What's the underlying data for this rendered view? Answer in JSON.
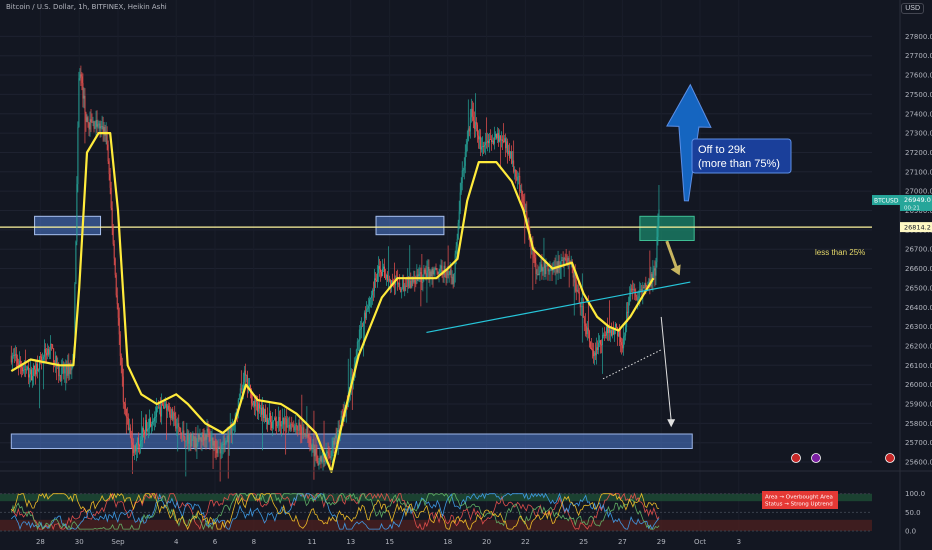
{
  "header": {
    "symbol_line": "Bitcoin / U.S. Dollar, 1h, BITFINEX, Heikin Ashi",
    "currency_button": "USD"
  },
  "colors": {
    "background": "#131722",
    "bull_candle": "#26a69a",
    "bear_candle": "#ef5350",
    "ma_line": "#ffeb3b",
    "resistance_line": "#fff59d",
    "zone_fill": "#4f7bd1",
    "green_zone": "#1b8f6f",
    "blue_arrow": "#1565c0",
    "trendline": "#26c6da",
    "osc_overbought": "#1e4d36",
    "osc_oversold": "#4a1f1f"
  },
  "chart_data": {
    "type": "candlestick",
    "ylim": [
      25550,
      27950
    ],
    "y_ticks": [
      "27800.0",
      "27700.0",
      "27600.0",
      "27500.0",
      "27400.0",
      "27300.0",
      "27200.0",
      "27100.0",
      "27000.0",
      "26900.0",
      "26800.0",
      "26700.0",
      "26600.0",
      "26500.0",
      "26400.0",
      "26300.0",
      "26200.0",
      "26100.0",
      "26000.0",
      "25900.0",
      "25800.0",
      "25700.0",
      "25600.0"
    ],
    "x_ticks": [
      "28",
      "30",
      "Sep",
      "4",
      "6",
      "8",
      "11",
      "13",
      "15",
      "18",
      "20",
      "22",
      "25",
      "27",
      "29",
      "Oct",
      "3"
    ],
    "x_tick_days": [
      -4,
      -2,
      0,
      3,
      5,
      7,
      10,
      12,
      14,
      17,
      19,
      21,
      24,
      26,
      28,
      30,
      32
    ],
    "price_path": [
      [
        -5.5,
        26150
      ],
      [
        -4.5,
        26050
      ],
      [
        -3.5,
        26200
      ],
      [
        -3.0,
        26050
      ],
      [
        -2.3,
        26100
      ],
      [
        -2.0,
        27650
      ],
      [
        -1.6,
        27350
      ],
      [
        -1.2,
        27350
      ],
      [
        -0.6,
        27300
      ],
      [
        -0.1,
        26500
      ],
      [
        0.3,
        25900
      ],
      [
        0.8,
        25650
      ],
      [
        1.5,
        25800
      ],
      [
        2.5,
        25900
      ],
      [
        3.2,
        25750
      ],
      [
        4.0,
        25700
      ],
      [
        4.6,
        25750
      ],
      [
        5.3,
        25650
      ],
      [
        6.0,
        25800
      ],
      [
        6.5,
        26050
      ],
      [
        7.0,
        25900
      ],
      [
        8.0,
        25800
      ],
      [
        9.0,
        25800
      ],
      [
        9.8,
        25750
      ],
      [
        10.3,
        25600
      ],
      [
        11.0,
        25650
      ],
      [
        11.8,
        25900
      ],
      [
        12.5,
        26300
      ],
      [
        13.5,
        26600
      ],
      [
        14.5,
        26500
      ],
      [
        15.5,
        26550
      ],
      [
        16.5,
        26600
      ],
      [
        17.3,
        26550
      ],
      [
        17.7,
        27050
      ],
      [
        18.2,
        27400
      ],
      [
        18.8,
        27200
      ],
      [
        19.5,
        27300
      ],
      [
        20.2,
        27200
      ],
      [
        20.8,
        27000
      ],
      [
        21.5,
        26600
      ],
      [
        22.5,
        26600
      ],
      [
        23.3,
        26650
      ],
      [
        24.0,
        26350
      ],
      [
        24.5,
        26150
      ],
      [
        25.0,
        26250
      ],
      [
        25.6,
        26300
      ],
      [
        26.0,
        26200
      ],
      [
        26.4,
        26500
      ],
      [
        26.8,
        26450
      ],
      [
        27.2,
        26500
      ],
      [
        27.5,
        26550
      ],
      [
        27.7,
        26600
      ],
      [
        27.9,
        26950
      ]
    ],
    "ma_path": [
      [
        -5.5,
        26070
      ],
      [
        -4.5,
        26130
      ],
      [
        -3.0,
        26100
      ],
      [
        -2.3,
        26100
      ],
      [
        -2.0,
        26500
      ],
      [
        -1.6,
        27200
      ],
      [
        -1.0,
        27300
      ],
      [
        -0.4,
        27300
      ],
      [
        0.0,
        26900
      ],
      [
        0.5,
        26100
      ],
      [
        1.2,
        25950
      ],
      [
        2.0,
        25900
      ],
      [
        3.0,
        25950
      ],
      [
        3.6,
        25900
      ],
      [
        4.5,
        25800
      ],
      [
        5.4,
        25750
      ],
      [
        6.0,
        25800
      ],
      [
        6.6,
        26000
      ],
      [
        7.2,
        25920
      ],
      [
        8.4,
        25900
      ],
      [
        9.2,
        25850
      ],
      [
        10.2,
        25750
      ],
      [
        10.6,
        25650
      ],
      [
        11.0,
        25550
      ],
      [
        11.6,
        25820
      ],
      [
        12.4,
        26150
      ],
      [
        13.6,
        26450
      ],
      [
        14.4,
        26550
      ],
      [
        15.2,
        26550
      ],
      [
        16.4,
        26550
      ],
      [
        17.0,
        26600
      ],
      [
        17.5,
        26650
      ],
      [
        18.0,
        26950
      ],
      [
        18.6,
        27150
      ],
      [
        19.5,
        27150
      ],
      [
        20.3,
        27050
      ],
      [
        20.9,
        26900
      ],
      [
        21.4,
        26700
      ],
      [
        22.4,
        26600
      ],
      [
        23.4,
        26630
      ],
      [
        24.0,
        26470
      ],
      [
        24.7,
        26350
      ],
      [
        25.3,
        26300
      ],
      [
        25.8,
        26280
      ],
      [
        26.4,
        26350
      ],
      [
        27.0,
        26450
      ],
      [
        27.6,
        26550
      ]
    ],
    "resistance_level": 26814.2,
    "series": [
      {
        "name": "Heikin Ashi candles",
        "kind": "candlestick"
      },
      {
        "name": "moving average",
        "kind": "line"
      }
    ],
    "support_zone": {
      "ymin": 25670,
      "ymax": 25745,
      "xmin": -5.5,
      "xmax": 29.6
    },
    "resistance_zones": [
      {
        "xmin": -4.3,
        "xmax": -0.9,
        "ymin": 26775,
        "ymax": 26870
      },
      {
        "xmin": 13.3,
        "xmax": 16.8,
        "ymin": 26775,
        "ymax": 26870
      },
      {
        "xmin": 26.9,
        "xmax": 29.7,
        "ymin": 26745,
        "ymax": 26870
      }
    ],
    "trendline": [
      [
        15.9,
        26270
      ],
      [
        29.5,
        26530
      ]
    ],
    "dotted_support": [
      [
        25.0,
        26030
      ],
      [
        28.0,
        26180
      ]
    ],
    "arrow_up": {
      "from": [
        29.3,
        26950
      ],
      "to": [
        29.5,
        27550
      ]
    },
    "arrow_down": {
      "from": [
        28.0,
        26350
      ],
      "to": [
        28.0,
        25780
      ]
    },
    "arrow_small": {
      "from": [
        28.7,
        26680
      ],
      "to": [
        28.9,
        26580
      ]
    },
    "price_tags": [
      {
        "label": "BTCUSD",
        "value": "26949.0",
        "sub": "00:21"
      },
      {
        "label": "",
        "value": "26814.2"
      }
    ],
    "annotations": [
      {
        "text": "Off to 29k\n(more than 75%)"
      },
      {
        "text": "less than 25%"
      }
    ],
    "oscillator": {
      "ylim": [
        0,
        110
      ],
      "y_ticks": [
        "100.0",
        "50.0",
        "0.0"
      ],
      "overbought": [
        80,
        100
      ],
      "oversold": [
        0,
        30
      ],
      "legend": [
        "Area → Overbought Area",
        "Status → Strong Uptrend"
      ]
    }
  }
}
